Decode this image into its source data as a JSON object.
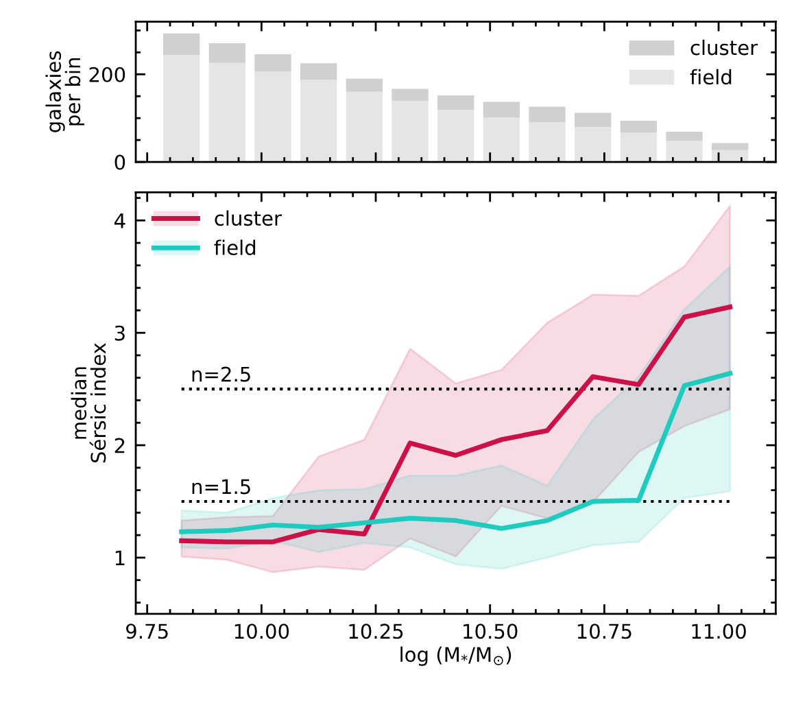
{
  "chart_data": [
    {
      "type": "bar",
      "stacked": true,
      "ylabel": "galaxies\nper bin",
      "x": [
        9.825,
        9.925,
        10.025,
        10.125,
        10.225,
        10.325,
        10.425,
        10.525,
        10.625,
        10.725,
        10.825,
        10.925,
        11.025
      ],
      "series": [
        {
          "name": "field",
          "color": "#e5e5e5",
          "values": [
            244,
            226,
            206,
            187,
            160,
            139,
            119,
            101,
            91,
            80,
            67,
            48,
            27
          ]
        },
        {
          "name": "cluster",
          "color": "#d0d0d0",
          "values": [
            49,
            45,
            40,
            38,
            30,
            28,
            33,
            36,
            35,
            32,
            27,
            21,
            16
          ]
        }
      ],
      "xlim": [
        9.725,
        11.125
      ],
      "xticks": [
        9.75,
        {
          "value": 9.8,
          "label": null
        },
        {
          "value": 9.85,
          "label": null
        },
        {
          "value": 9.9,
          "label": null
        },
        {
          "value": 9.95,
          "label": null
        },
        10.0,
        {
          "value": 10.05,
          "label": null
        },
        {
          "value": 10.1,
          "label": null
        },
        {
          "value": 10.15,
          "label": null
        },
        {
          "value": 10.2,
          "label": null
        },
        10.25,
        {
          "value": 10.3,
          "label": null
        },
        {
          "value": 10.35,
          "label": null
        },
        {
          "value": 10.4,
          "label": null
        },
        {
          "value": 10.45,
          "label": null
        },
        10.5,
        {
          "value": 10.55,
          "label": null
        },
        {
          "value": 10.6,
          "label": null
        },
        {
          "value": 10.65,
          "label": null
        },
        {
          "value": 10.7,
          "label": null
        },
        10.75,
        {
          "value": 10.8,
          "label": null
        },
        {
          "value": 10.85,
          "label": null
        },
        {
          "value": 10.9,
          "label": null
        },
        {
          "value": 10.95,
          "label": null
        },
        11.0,
        {
          "value": 11.05,
          "label": null
        },
        {
          "value": 11.1,
          "label": null
        }
      ],
      "ylim": [
        0,
        320
      ],
      "yticks": [
        0,
        {
          "value": 50,
          "label": null
        },
        {
          "value": 100,
          "label": null
        },
        {
          "value": 150,
          "label": null
        },
        200,
        {
          "value": 250,
          "label": null
        },
        {
          "value": 300,
          "label": null
        }
      ],
      "tick_labels": "y",
      "legend": "top right",
      "grid": false
    },
    {
      "type": "line",
      "xlabel": "log (M$_{*}$/M$_{⊙}$)",
      "ylabel": "median\nSérsic index",
      "x": [
        9.825,
        9.925,
        10.025,
        10.125,
        10.225,
        10.325,
        10.425,
        10.525,
        10.625,
        10.725,
        10.825,
        10.925,
        11.025
      ],
      "series": [
        {
          "name": "cluster",
          "color": "#cc1149",
          "values": [
            1.15,
            1.14,
            1.14,
            1.25,
            1.21,
            2.02,
            1.91,
            2.05,
            2.13,
            2.61,
            2.54,
            3.14,
            3.23
          ],
          "lower": [
            1.01,
            0.98,
            0.87,
            0.92,
            0.89,
            1.17,
            1.01,
            1.46,
            1.35,
            1.49,
            1.94,
            2.17,
            2.32
          ],
          "upper": [
            1.33,
            1.36,
            1.37,
            1.9,
            2.05,
            2.86,
            2.55,
            2.67,
            3.09,
            3.34,
            3.33,
            3.59,
            4.13
          ]
        },
        {
          "name": "field",
          "color": "#1fcbbf",
          "values": [
            1.23,
            1.24,
            1.29,
            1.27,
            1.31,
            1.35,
            1.33,
            1.26,
            1.33,
            1.5,
            1.51,
            2.53,
            2.64
          ],
          "lower": [
            1.09,
            1.08,
            1.15,
            1.05,
            1.13,
            1.09,
            0.94,
            0.9,
            1.0,
            1.11,
            1.14,
            1.53,
            1.59
          ],
          "upper": [
            1.42,
            1.4,
            1.53,
            1.6,
            1.61,
            1.73,
            1.73,
            1.82,
            1.64,
            2.23,
            2.61,
            3.21,
            3.59
          ]
        }
      ],
      "ref_lines": [
        {
          "axis": "y",
          "value": 2.5,
          "label": "n=2.5",
          "color": "#000000",
          "line_style": "dotted"
        },
        {
          "axis": "y",
          "value": 1.5,
          "label": "n=1.5",
          "color": "#000000",
          "line_style": "dotted"
        }
      ],
      "xlim": [
        9.725,
        11.125
      ],
      "xticks": [
        {
          "value": 9.75,
          "label": "9.75"
        },
        {
          "value": 9.8,
          "label": null
        },
        {
          "value": 9.85,
          "label": null
        },
        {
          "value": 9.9,
          "label": null
        },
        {
          "value": 9.95,
          "label": null
        },
        {
          "value": 10.0,
          "label": "10.00"
        },
        {
          "value": 10.05,
          "label": null
        },
        {
          "value": 10.1,
          "label": null
        },
        {
          "value": 10.15,
          "label": null
        },
        {
          "value": 10.2,
          "label": null
        },
        {
          "value": 10.25,
          "label": "10.25"
        },
        {
          "value": 10.3,
          "label": null
        },
        {
          "value": 10.35,
          "label": null
        },
        {
          "value": 10.4,
          "label": null
        },
        {
          "value": 10.45,
          "label": null
        },
        {
          "value": 10.5,
          "label": "10.50"
        },
        {
          "value": 10.55,
          "label": null
        },
        {
          "value": 10.6,
          "label": null
        },
        {
          "value": 10.65,
          "label": null
        },
        {
          "value": 10.7,
          "label": null
        },
        {
          "value": 10.75,
          "label": "10.75"
        },
        {
          "value": 10.8,
          "label": null
        },
        {
          "value": 10.85,
          "label": null
        },
        {
          "value": 10.9,
          "label": null
        },
        {
          "value": 10.95,
          "label": null
        },
        {
          "value": 11.0,
          "label": "11.00"
        },
        {
          "value": 11.05,
          "label": null
        },
        {
          "value": 11.1,
          "label": null
        }
      ],
      "ylim": [
        0.5,
        4.25
      ],
      "yticks": [
        {
          "value": 0.6,
          "label": null
        },
        {
          "value": 0.8,
          "label": null
        },
        1,
        {
          "value": 1.2,
          "label": null
        },
        {
          "value": 1.4,
          "label": null
        },
        {
          "value": 1.6,
          "label": null
        },
        {
          "value": 1.8,
          "label": null
        },
        2,
        {
          "value": 2.2,
          "label": null
        },
        {
          "value": 2.4,
          "label": null
        },
        {
          "value": 2.6,
          "label": null
        },
        {
          "value": 2.8,
          "label": null
        },
        3,
        {
          "value": 3.2,
          "label": null
        },
        {
          "value": 3.4,
          "label": null
        },
        {
          "value": 3.6,
          "label": null
        },
        {
          "value": 3.8,
          "label": null
        },
        4,
        {
          "value": 4.2,
          "label": null
        }
      ],
      "legend": "top left",
      "marker": "none",
      "line_style": "solid",
      "grid": false
    }
  ]
}
